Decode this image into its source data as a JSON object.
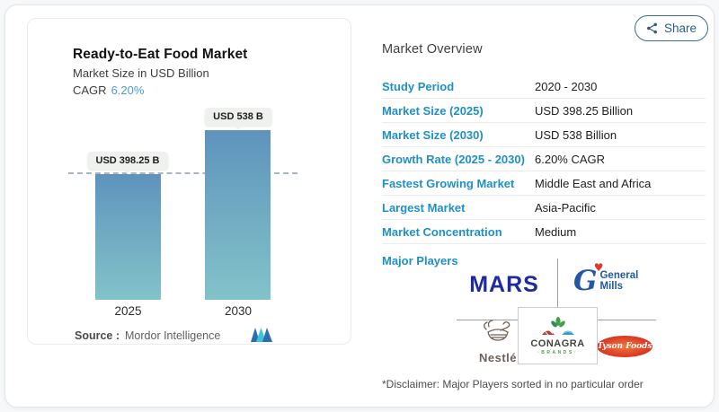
{
  "share": {
    "label": "Share"
  },
  "chart": {
    "title": "Ready-to-Eat Food Market",
    "subtitle": "Market Size in USD Billion",
    "cagr_label": "CAGR",
    "cagr_value": "6.20%",
    "source_label": "Source :",
    "source_brand": "Mordor Intelligence"
  },
  "chart_data": {
    "type": "bar",
    "title": "Ready-to-Eat Food Market",
    "subtitle": "Market Size in USD Billion",
    "categories": [
      "2025",
      "2030"
    ],
    "values": [
      398.25,
      538
    ],
    "bar_labels": [
      "USD 398.25 B",
      "USD 538 B"
    ],
    "unit": "USD Billion",
    "cagr": "6.20%",
    "reference_line": {
      "style": "dashed",
      "at": 398.25
    },
    "legend": "none",
    "ylim": [
      0,
      560
    ],
    "bar_color_top": "#5e93bc",
    "bar_color_bottom": "#82c3c9"
  },
  "overview": {
    "title": "Market Overview",
    "rows": [
      {
        "label": "Study Period",
        "value": "2020 - 2030"
      },
      {
        "label": "Market Size (2025)",
        "value": "USD 398.25 Billion"
      },
      {
        "label": "Market Size (2030)",
        "value": "USD 538 Billion"
      },
      {
        "label": "Growth Rate (2025 - 2030)",
        "value": "6.20% CAGR"
      },
      {
        "label": "Fastest Growing Market",
        "value": "Middle East and Africa"
      },
      {
        "label": "Largest Market",
        "value": "Asia-Pacific"
      },
      {
        "label": "Market Concentration",
        "value": "Medium"
      }
    ],
    "major_players_label": "Major Players",
    "disclaimer": "*Disclaimer: Major Players sorted in no particular order"
  },
  "players": {
    "mars": "MARS",
    "gm_line1": "General",
    "gm_line2": "Mills",
    "nestle": "Nestlé",
    "conagra": "CONAGRA",
    "conagra_sub": "·BRANDS·",
    "tyson": "Tyson Foods"
  },
  "icons": {
    "share": "share-nodes-icon",
    "general_mills_heart": "heart-icon",
    "brand_logo": "mordor-intelligence-logo"
  },
  "colors": {
    "label_blue": "#1f90c6",
    "cagr_blue": "#4e9ad3",
    "mars_blue": "#1e2a9e",
    "gm_blue": "#2457a7",
    "heart_red": "#e0372e",
    "nestle_gray": "#6e6257",
    "conagra_gray": "#44443e",
    "conagra_green": "#4f9e4f",
    "tyson_red": "#dd3d25",
    "share_teal": "#2c5e82"
  }
}
